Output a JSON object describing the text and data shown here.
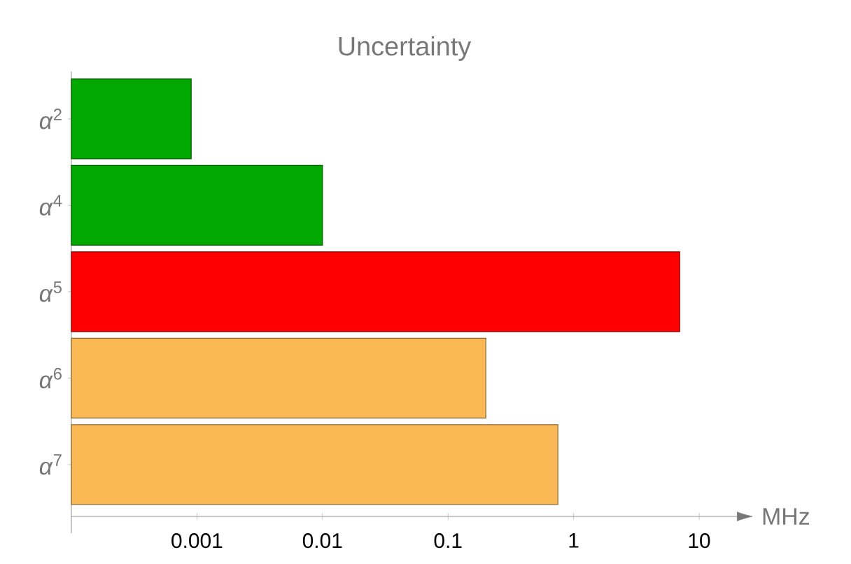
{
  "chart_data": {
    "type": "bar",
    "orientation": "horizontal",
    "title": "Uncertainty",
    "xlabel": "MHz",
    "categories": [
      "*α*$^{2}$",
      "*α*$^{4}$",
      "*α*$^{5}$",
      "*α*$^{6}$",
      "*α*$^{7}$"
    ],
    "values": [
      0.0009,
      0.01,
      7,
      0.2,
      0.75
    ],
    "colors": [
      "#00a800",
      "#00a800",
      "#ff0000",
      "#fbb955",
      "#fbb955"
    ],
    "log": "x",
    "xlim": [
      0.0001,
      20
    ],
    "xticks": [
      0.001,
      0.01,
      0.1,
      1,
      10
    ]
  }
}
